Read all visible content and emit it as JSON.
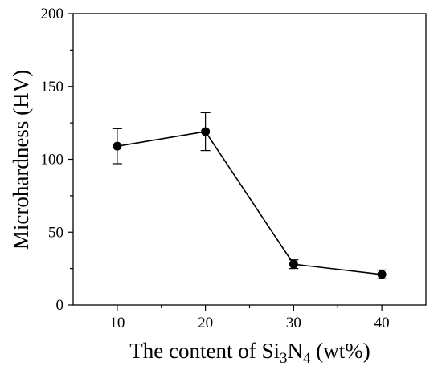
{
  "chart_data": {
    "type": "line",
    "title": "",
    "xlabel": "The content of Si3N4 (wt%)",
    "ylabel": "Microhardness (HV)",
    "xlim": [
      5,
      45
    ],
    "ylim": [
      0,
      200
    ],
    "x_ticks": [
      10,
      20,
      30,
      40
    ],
    "y_ticks": [
      0,
      50,
      100,
      150,
      200
    ],
    "grid": false,
    "series": [
      {
        "x": [
          10,
          20,
          30,
          40
        ],
        "y": [
          109,
          119,
          28,
          21
        ],
        "yerr": [
          12,
          13,
          3,
          3
        ],
        "color": "#000000",
        "marker": "circle"
      }
    ]
  }
}
